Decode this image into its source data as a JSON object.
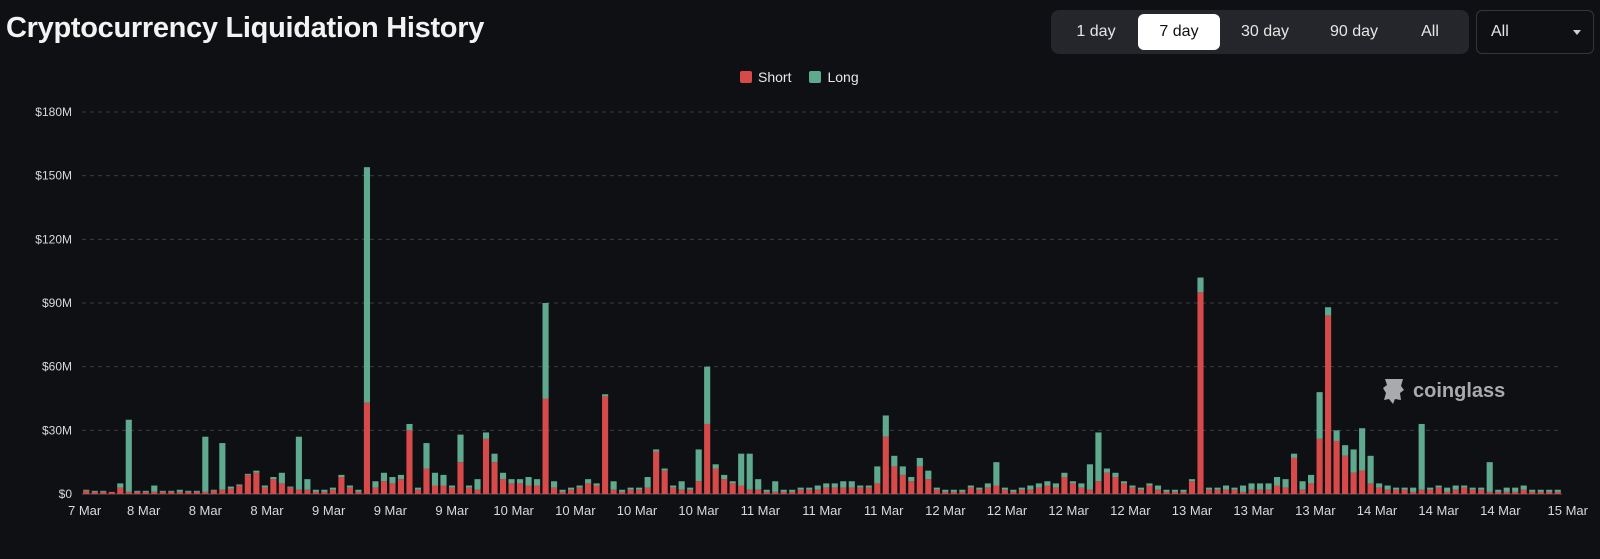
{
  "header": {
    "title": "Cryptocurrency Liquidation History",
    "ranges": [
      {
        "label": "1 day",
        "active": false
      },
      {
        "label": "7 day",
        "active": true
      },
      {
        "label": "30 day",
        "active": false
      },
      {
        "label": "90 day",
        "active": false
      },
      {
        "label": "All",
        "active": false
      }
    ],
    "filter": {
      "selected": "All"
    }
  },
  "watermark": "coinglass",
  "colors": {
    "short": "#d64a4a",
    "long": "#5fa98f",
    "background": "#0f1013",
    "grid": "#3a3c42"
  },
  "chart_data": {
    "type": "bar",
    "stacked": true,
    "legend_position": "top-center",
    "grid": true,
    "y_ticks": [
      "$0",
      "$30M",
      "$60M",
      "$90M",
      "$120M",
      "$150M",
      "$180M"
    ],
    "x_ticks": [
      "7 Mar",
      "8 Mar",
      "8 Mar",
      "8 Mar",
      "9 Mar",
      "9 Mar",
      "9 Mar",
      "10 Mar",
      "10 Mar",
      "10 Mar",
      "10 Mar",
      "11 Mar",
      "11 Mar",
      "11 Mar",
      "12 Mar",
      "12 Mar",
      "12 Mar",
      "12 Mar",
      "13 Mar",
      "13 Mar",
      "13 Mar",
      "14 Mar",
      "14 Mar",
      "14 Mar",
      "15 Mar"
    ],
    "ylim": [
      0,
      180
    ],
    "y_unit": "$M",
    "series": [
      {
        "name": "Short",
        "values": [
          1.5,
          1,
          1,
          1,
          3,
          1,
          1,
          1,
          1,
          1,
          1,
          1,
          1,
          1,
          1,
          1.5,
          2,
          2.5,
          4,
          9,
          10,
          3,
          7,
          5,
          3,
          2,
          2,
          1,
          1,
          2,
          8,
          3,
          1,
          43,
          3,
          6,
          5,
          7,
          30,
          2,
          12,
          4,
          4,
          3,
          15,
          3,
          2,
          26,
          15,
          7,
          5,
          5,
          4,
          4,
          45,
          3,
          1,
          2,
          3,
          5,
          4,
          46,
          2,
          1,
          2,
          2,
          3,
          20,
          11,
          3,
          2,
          2,
          6,
          33,
          12,
          7,
          5,
          4,
          2,
          2,
          1,
          1,
          1,
          1,
          2,
          2,
          2,
          3,
          3,
          3,
          3,
          3,
          3,
          5,
          27,
          13,
          9,
          6,
          13,
          7,
          2,
          1,
          1,
          1,
          3,
          2,
          3,
          4,
          2,
          1,
          2,
          2,
          3,
          4,
          3,
          8,
          5,
          3,
          2,
          6,
          10,
          8,
          5,
          3,
          2,
          4,
          2,
          1,
          1,
          1,
          6,
          95,
          2,
          2,
          2,
          2,
          1,
          2,
          2,
          2,
          4,
          3,
          17,
          2,
          5,
          26,
          84,
          25,
          18,
          10,
          11,
          5,
          3,
          2,
          2,
          2,
          1,
          2,
          2,
          3,
          1,
          2,
          3,
          2,
          2,
          1,
          1,
          1,
          1,
          2,
          1,
          1,
          1,
          1
        ]
      },
      {
        "name": "Long",
        "values": [
          0.5,
          0.5,
          0.5,
          0,
          2,
          34,
          0.5,
          0.5,
          3,
          0.5,
          0.5,
          1,
          0.5,
          0.5,
          26,
          0.5,
          22,
          1,
          0.5,
          0.5,
          1,
          1,
          1,
          5,
          0.5,
          25,
          5,
          1,
          1,
          1,
          1,
          1,
          1,
          111,
          3,
          4,
          3,
          2,
          3,
          1,
          12,
          6,
          5,
          1,
          13,
          1,
          5,
          3,
          4,
          3,
          2,
          2,
          4,
          3,
          45,
          3,
          1,
          1,
          1,
          2,
          1,
          1,
          4,
          1,
          1,
          1,
          5,
          1,
          1,
          1,
          4,
          1,
          15,
          27,
          2,
          2,
          1,
          15,
          17,
          5,
          1,
          5,
          1,
          1,
          1,
          1,
          2,
          2,
          2,
          3,
          3,
          1,
          1,
          8,
          10,
          5,
          4,
          2,
          4,
          4,
          1,
          1,
          1,
          1,
          1,
          1,
          2,
          11,
          1,
          1,
          1,
          2,
          2,
          2,
          2,
          2,
          1,
          2,
          12,
          23,
          2,
          2,
          1,
          1,
          1,
          1,
          2,
          1,
          1,
          1,
          1,
          7,
          1,
          1,
          2,
          1,
          3,
          3,
          3,
          3,
          4,
          4,
          2,
          4,
          4,
          22,
          4,
          5,
          5,
          11,
          20,
          13,
          2,
          2,
          1,
          1,
          2,
          31,
          1,
          1,
          2,
          2,
          1,
          1,
          1,
          14,
          1,
          2,
          2,
          2,
          1,
          1,
          1,
          1
        ]
      }
    ]
  }
}
